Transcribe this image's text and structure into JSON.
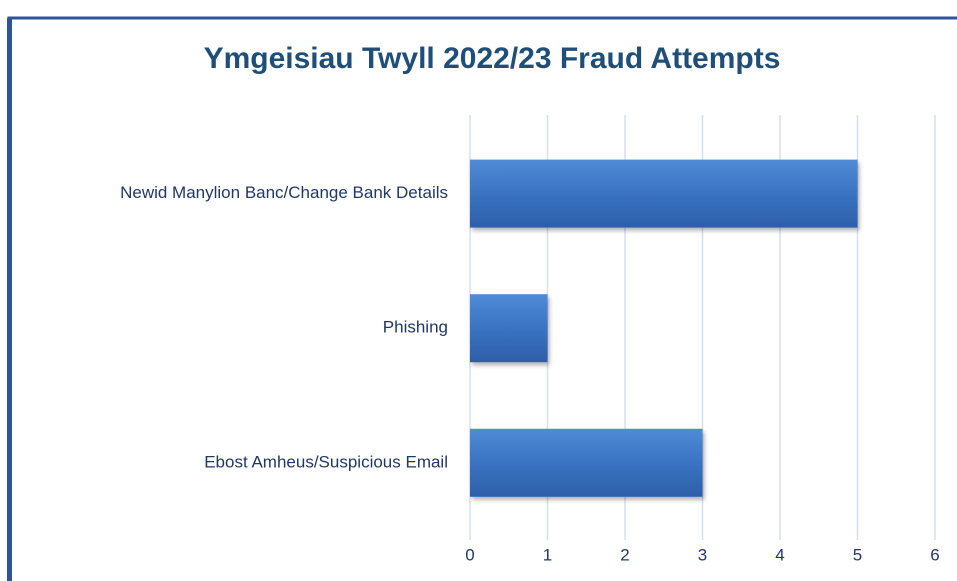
{
  "chart_data": {
    "type": "bar",
    "orientation": "horizontal",
    "title": "Ymgeisiau Twyll 2022/23 Fraud Attempts",
    "categories": [
      "Newid Manylion Banc/Change Bank Details",
      "Phishing",
      "Ebost Amheus/Suspicious Email"
    ],
    "values": [
      5,
      1,
      3
    ],
    "color": "#3a73c2",
    "xlim": [
      0,
      6
    ],
    "xticks": [
      0,
      1,
      2,
      3,
      4,
      5,
      6
    ],
    "grid": true
  }
}
